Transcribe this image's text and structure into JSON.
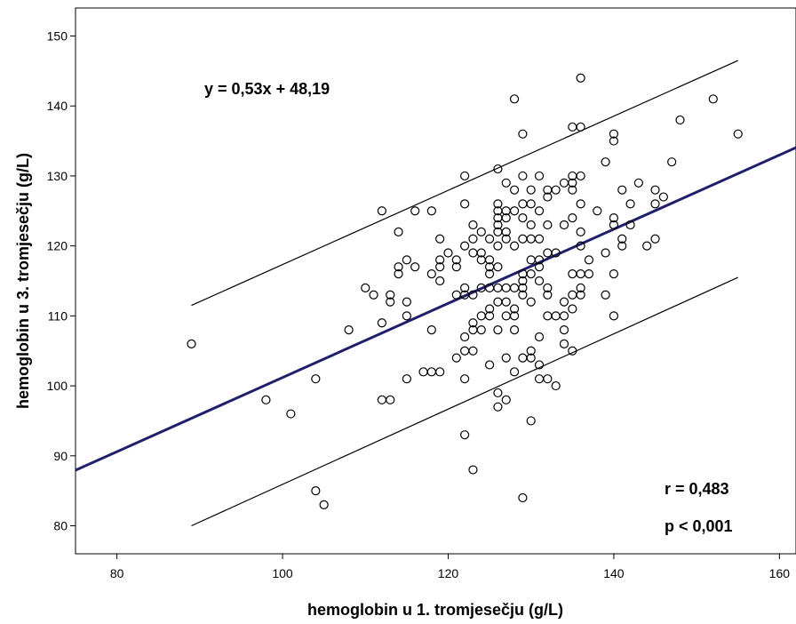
{
  "chart_data": {
    "type": "scatter",
    "title": "",
    "xlabel": "hemoglobin u 1. tromjesečju (g/L)",
    "ylabel": "hemoglobin u 3. tromjesečju (g/L)",
    "xlim": [
      75,
      162
    ],
    "ylim": [
      76,
      154
    ],
    "xticks": [
      80,
      100,
      120,
      140,
      160
    ],
    "yticks": [
      80,
      90,
      100,
      110,
      120,
      130,
      140,
      150
    ],
    "grid": false,
    "equation": "y = 0,53x + 48,19",
    "r_text": "r = 0,483",
    "p_text": "p < 0,001",
    "regression": {
      "slope": 0.53,
      "intercept": 48.19,
      "x_range": [
        75,
        162
      ],
      "color": "#1f1f6b"
    },
    "prediction_band": {
      "upper": [
        [
          89,
          111.5
        ],
        [
          155,
          146.5
        ]
      ],
      "lower": [
        [
          89,
          80
        ],
        [
          155,
          115.5
        ]
      ]
    },
    "points": [
      [
        89,
        106
      ],
      [
        98,
        98
      ],
      [
        101,
        96
      ],
      [
        104,
        101
      ],
      [
        104,
        85
      ],
      [
        105,
        83
      ],
      [
        108,
        108
      ],
      [
        110,
        114
      ],
      [
        111,
        113
      ],
      [
        112,
        125
      ],
      [
        112,
        109
      ],
      [
        112,
        98
      ],
      [
        113,
        113
      ],
      [
        113,
        112
      ],
      [
        113,
        98
      ],
      [
        114,
        122
      ],
      [
        114,
        117
      ],
      [
        114,
        116
      ],
      [
        115,
        118
      ],
      [
        115,
        112
      ],
      [
        115,
        110
      ],
      [
        115,
        101
      ],
      [
        116,
        125
      ],
      [
        116,
        117
      ],
      [
        117,
        102
      ],
      [
        118,
        125
      ],
      [
        118,
        116
      ],
      [
        118,
        108
      ],
      [
        118,
        102
      ],
      [
        119,
        121
      ],
      [
        119,
        118
      ],
      [
        119,
        117
      ],
      [
        119,
        115
      ],
      [
        119,
        102
      ],
      [
        120,
        119
      ],
      [
        121,
        118
      ],
      [
        121,
        117
      ],
      [
        121,
        113
      ],
      [
        121,
        104
      ],
      [
        122,
        130
      ],
      [
        122,
        126
      ],
      [
        122,
        120
      ],
      [
        122,
        114
      ],
      [
        122,
        113
      ],
      [
        122,
        107
      ],
      [
        122,
        105
      ],
      [
        122,
        101
      ],
      [
        122,
        93
      ],
      [
        123,
        123
      ],
      [
        123,
        121
      ],
      [
        123,
        119
      ],
      [
        123,
        113
      ],
      [
        123,
        109
      ],
      [
        123,
        108
      ],
      [
        123,
        105
      ],
      [
        123,
        88
      ],
      [
        124,
        122
      ],
      [
        124,
        119
      ],
      [
        124,
        118
      ],
      [
        124,
        114
      ],
      [
        124,
        110
      ],
      [
        124,
        108
      ],
      [
        125,
        121
      ],
      [
        125,
        118
      ],
      [
        125,
        117
      ],
      [
        125,
        116
      ],
      [
        125,
        114
      ],
      [
        125,
        111
      ],
      [
        125,
        110
      ],
      [
        125,
        103
      ],
      [
        126,
        131
      ],
      [
        126,
        126
      ],
      [
        126,
        125
      ],
      [
        126,
        124
      ],
      [
        126,
        123
      ],
      [
        126,
        122
      ],
      [
        126,
        120
      ],
      [
        126,
        117
      ],
      [
        126,
        114
      ],
      [
        126,
        112
      ],
      [
        126,
        108
      ],
      [
        126,
        99
      ],
      [
        126,
        97
      ],
      [
        127,
        129
      ],
      [
        127,
        125
      ],
      [
        127,
        124
      ],
      [
        127,
        122
      ],
      [
        127,
        121
      ],
      [
        127,
        114
      ],
      [
        127,
        112
      ],
      [
        127,
        110
      ],
      [
        127,
        104
      ],
      [
        127,
        98
      ],
      [
        128,
        141
      ],
      [
        128,
        128
      ],
      [
        128,
        125
      ],
      [
        128,
        120
      ],
      [
        128,
        114
      ],
      [
        128,
        111
      ],
      [
        128,
        110
      ],
      [
        128,
        108
      ],
      [
        128,
        102
      ],
      [
        129,
        136
      ],
      [
        129,
        130
      ],
      [
        129,
        126
      ],
      [
        129,
        124
      ],
      [
        129,
        121
      ],
      [
        129,
        116
      ],
      [
        129,
        115
      ],
      [
        129,
        114
      ],
      [
        129,
        113
      ],
      [
        129,
        104
      ],
      [
        129,
        84
      ],
      [
        130,
        128
      ],
      [
        130,
        126
      ],
      [
        130,
        123
      ],
      [
        130,
        121
      ],
      [
        130,
        118
      ],
      [
        130,
        116
      ],
      [
        130,
        112
      ],
      [
        130,
        105
      ],
      [
        130,
        104
      ],
      [
        130,
        95
      ],
      [
        131,
        130
      ],
      [
        131,
        125
      ],
      [
        131,
        121
      ],
      [
        131,
        118
      ],
      [
        131,
        117
      ],
      [
        131,
        115
      ],
      [
        131,
        107
      ],
      [
        131,
        103
      ],
      [
        131,
        101
      ],
      [
        132,
        128
      ],
      [
        132,
        127
      ],
      [
        132,
        123
      ],
      [
        132,
        119
      ],
      [
        132,
        114
      ],
      [
        132,
        113
      ],
      [
        132,
        110
      ],
      [
        132,
        101
      ],
      [
        133,
        128
      ],
      [
        133,
        119
      ],
      [
        133,
        110
      ],
      [
        133,
        100
      ],
      [
        134,
        129
      ],
      [
        134,
        123
      ],
      [
        134,
        112
      ],
      [
        134,
        110
      ],
      [
        134,
        108
      ],
      [
        134,
        106
      ],
      [
        135,
        137
      ],
      [
        135,
        130
      ],
      [
        135,
        129
      ],
      [
        135,
        128
      ],
      [
        135,
        124
      ],
      [
        135,
        116
      ],
      [
        135,
        113
      ],
      [
        135,
        111
      ],
      [
        135,
        105
      ],
      [
        136,
        144
      ],
      [
        136,
        137
      ],
      [
        136,
        130
      ],
      [
        136,
        126
      ],
      [
        136,
        122
      ],
      [
        136,
        120
      ],
      [
        136,
        114
      ],
      [
        136,
        113
      ],
      [
        136,
        116
      ],
      [
        137,
        118
      ],
      [
        137,
        116
      ],
      [
        138,
        125
      ],
      [
        139,
        132
      ],
      [
        139,
        119
      ],
      [
        139,
        113
      ],
      [
        140,
        136
      ],
      [
        140,
        135
      ],
      [
        140,
        124
      ],
      [
        140,
        123
      ],
      [
        140,
        116
      ],
      [
        140,
        110
      ],
      [
        141,
        128
      ],
      [
        141,
        121
      ],
      [
        141,
        120
      ],
      [
        142,
        126
      ],
      [
        142,
        123
      ],
      [
        143,
        129
      ],
      [
        144,
        120
      ],
      [
        145,
        128
      ],
      [
        145,
        126
      ],
      [
        145,
        121
      ],
      [
        146,
        127
      ],
      [
        147,
        132
      ],
      [
        148,
        138
      ],
      [
        152,
        141
      ],
      [
        155,
        136
      ]
    ]
  }
}
